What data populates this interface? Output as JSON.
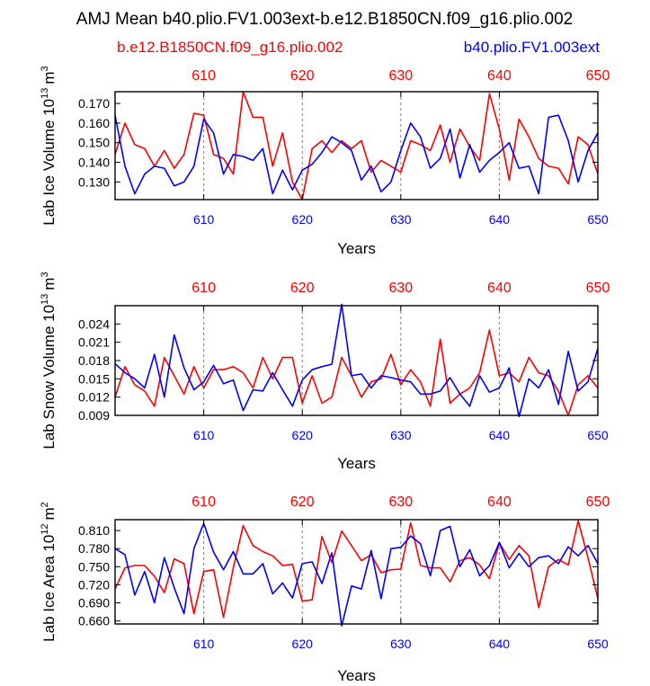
{
  "title": "AMJ Mean b40.plio.FV1.003ext-b.e12.B1850CN.f09_g16.plio.002",
  "legend": {
    "left": "b.e12.B1850CN.f09_g16.plio.002",
    "right": "b40.plio.FV1.003ext"
  },
  "colors": {
    "series_a": "#ff0000",
    "series_b": "#0000ff",
    "axis": "#000000",
    "grid": "#808080"
  },
  "chart_data": [
    {
      "type": "line",
      "ylabel": "Lab Ice Volume 10",
      "ylabel_exp": "13",
      "ylabel_unit": "m",
      "ylabel_unit_exp": "3",
      "xlabel": "Years",
      "x": [
        601,
        602,
        603,
        604,
        605,
        606,
        607,
        608,
        609,
        610,
        611,
        612,
        613,
        614,
        615,
        616,
        617,
        618,
        619,
        620,
        621,
        622,
        623,
        624,
        625,
        626,
        627,
        628,
        629,
        630,
        631,
        632,
        633,
        634,
        635,
        636,
        637,
        638,
        639,
        640,
        641,
        642,
        643,
        644,
        645,
        646,
        647,
        648,
        649,
        650
      ],
      "xlim": [
        601,
        650
      ],
      "ylim": [
        0.121,
        0.176
      ],
      "yticks": [
        "0.130",
        "0.140",
        "0.150",
        "0.160",
        "0.170"
      ],
      "xticks": [
        "610",
        "620",
        "630",
        "640",
        "650"
      ],
      "series": [
        {
          "name": "b.e12.B1850CN.f09_g16.plio.002",
          "color": "red",
          "values": [
            0.144,
            0.16,
            0.149,
            0.147,
            0.138,
            0.146,
            0.137,
            0.144,
            0.165,
            0.164,
            0.144,
            0.142,
            0.134,
            0.176,
            0.163,
            0.163,
            0.138,
            0.155,
            0.13,
            0.121,
            0.147,
            0.151,
            0.145,
            0.151,
            0.147,
            0.151,
            0.135,
            0.141,
            0.138,
            0.135,
            0.151,
            0.149,
            0.146,
            0.159,
            0.14,
            0.157,
            0.148,
            0.141,
            0.175,
            0.157,
            0.131,
            0.162,
            0.153,
            0.142,
            0.138,
            0.137,
            0.129,
            0.153,
            0.149,
            0.134
          ]
        },
        {
          "name": "b40.plio.FV1.003ext",
          "color": "blue",
          "values": [
            0.164,
            0.138,
            0.124,
            0.134,
            0.138,
            0.137,
            0.128,
            0.13,
            0.138,
            0.162,
            0.155,
            0.134,
            0.144,
            0.143,
            0.141,
            0.147,
            0.124,
            0.136,
            0.126,
            0.136,
            0.139,
            0.145,
            0.153,
            0.15,
            0.146,
            0.131,
            0.138,
            0.125,
            0.13,
            0.146,
            0.16,
            0.153,
            0.137,
            0.142,
            0.157,
            0.132,
            0.149,
            0.135,
            0.141,
            0.145,
            0.15,
            0.137,
            0.138,
            0.124,
            0.163,
            0.164,
            0.151,
            0.13,
            0.146,
            0.155
          ]
        }
      ]
    },
    {
      "type": "line",
      "ylabel": "Lab Snow Volume 10",
      "ylabel_exp": "13",
      "ylabel_unit": "m",
      "ylabel_unit_exp": "3",
      "xlabel": "Years",
      "x": [
        601,
        602,
        603,
        604,
        605,
        606,
        607,
        608,
        609,
        610,
        611,
        612,
        613,
        614,
        615,
        616,
        617,
        618,
        619,
        620,
        621,
        622,
        623,
        624,
        625,
        626,
        627,
        628,
        629,
        630,
        631,
        632,
        633,
        634,
        635,
        636,
        637,
        638,
        639,
        640,
        641,
        642,
        643,
        644,
        645,
        646,
        647,
        648,
        649,
        650
      ],
      "xlim": [
        601,
        650
      ],
      "ylim": [
        0.009,
        0.027
      ],
      "yticks": [
        "0.009",
        "0.012",
        "0.015",
        "0.018",
        "0.021",
        "0.024"
      ],
      "xticks": [
        "610",
        "620",
        "630",
        "640",
        "650"
      ],
      "series": [
        {
          "name": "b.e12.B1850CN.f09_g16.plio.002",
          "color": "red",
          "values": [
            0.012,
            0.017,
            0.014,
            0.013,
            0.0105,
            0.0185,
            0.0155,
            0.0125,
            0.017,
            0.0135,
            0.0165,
            0.0165,
            0.017,
            0.016,
            0.0135,
            0.0185,
            0.015,
            0.0185,
            0.0185,
            0.011,
            0.0155,
            0.011,
            0.012,
            0.0185,
            0.0155,
            0.012,
            0.0145,
            0.015,
            0.019,
            0.014,
            0.0165,
            0.0145,
            0.0105,
            0.0215,
            0.011,
            0.0125,
            0.0135,
            0.016,
            0.023,
            0.0155,
            0.016,
            0.0145,
            0.0185,
            0.016,
            0.0155,
            0.013,
            0.009,
            0.014,
            0.0155,
            0.0135
          ]
        },
        {
          "name": "b40.plio.FV1.003ext",
          "color": "blue",
          "values": [
            0.0175,
            0.016,
            0.015,
            0.0135,
            0.019,
            0.012,
            0.0222,
            0.0168,
            0.0132,
            0.0145,
            0.0172,
            0.0142,
            0.0148,
            0.0098,
            0.0132,
            0.013,
            0.016,
            0.0132,
            0.0105,
            0.0148,
            0.0165,
            0.017,
            0.0174,
            0.0272,
            0.0155,
            0.0158,
            0.0135,
            0.0155,
            0.0152,
            0.0148,
            0.0145,
            0.0125,
            0.0125,
            0.013,
            0.0152,
            0.0125,
            0.0105,
            0.0155,
            0.0128,
            0.0135,
            0.0168,
            0.0088,
            0.015,
            0.0135,
            0.0165,
            0.0108,
            0.0195,
            0.013,
            0.0145,
            0.02
          ]
        }
      ]
    },
    {
      "type": "line",
      "ylabel": "Lab Ice Area 10",
      "ylabel_exp": "12",
      "ylabel_unit": "m",
      "ylabel_unit_exp": "2",
      "xlabel": "Years",
      "x": [
        601,
        602,
        603,
        604,
        605,
        606,
        607,
        608,
        609,
        610,
        611,
        612,
        613,
        614,
        615,
        616,
        617,
        618,
        619,
        620,
        621,
        622,
        623,
        624,
        625,
        626,
        627,
        628,
        629,
        630,
        631,
        632,
        633,
        634,
        635,
        636,
        637,
        638,
        639,
        640,
        641,
        642,
        643,
        644,
        645,
        646,
        647,
        648,
        649,
        650
      ],
      "xlim": [
        601,
        650
      ],
      "ylim": [
        0.655,
        0.828
      ],
      "yticks": [
        "0.660",
        "0.690",
        "0.720",
        "0.750",
        "0.780",
        "0.810"
      ],
      "xticks": [
        "610",
        "620",
        "630",
        "640",
        "650"
      ],
      "series": [
        {
          "name": "b.e12.B1850CN.f09_g16.plio.002",
          "color": "red",
          "values": [
            0.713,
            0.748,
            0.752,
            0.752,
            0.734,
            0.707,
            0.763,
            0.755,
            0.672,
            0.742,
            0.745,
            0.666,
            0.748,
            0.818,
            0.785,
            0.775,
            0.768,
            0.752,
            0.754,
            0.693,
            0.695,
            0.8,
            0.757,
            0.809,
            0.785,
            0.76,
            0.77,
            0.74,
            0.745,
            0.746,
            0.823,
            0.752,
            0.748,
            0.748,
            0.725,
            0.76,
            0.765,
            0.753,
            0.73,
            0.79,
            0.762,
            0.785,
            0.768,
            0.682,
            0.75,
            0.762,
            0.753,
            0.826,
            0.765,
            0.697
          ]
        },
        {
          "name": "b40.plio.FV1.003ext",
          "color": "blue",
          "values": [
            0.78,
            0.77,
            0.703,
            0.742,
            0.69,
            0.765,
            0.715,
            0.672,
            0.78,
            0.822,
            0.774,
            0.745,
            0.775,
            0.738,
            0.738,
            0.755,
            0.705,
            0.723,
            0.698,
            0.755,
            0.758,
            0.722,
            0.773,
            0.652,
            0.718,
            0.713,
            0.777,
            0.697,
            0.78,
            0.782,
            0.801,
            0.788,
            0.735,
            0.81,
            0.817,
            0.75,
            0.778,
            0.735,
            0.752,
            0.79,
            0.748,
            0.772,
            0.75,
            0.765,
            0.768,
            0.755,
            0.783,
            0.768,
            0.785,
            0.755
          ]
        }
      ]
    }
  ]
}
